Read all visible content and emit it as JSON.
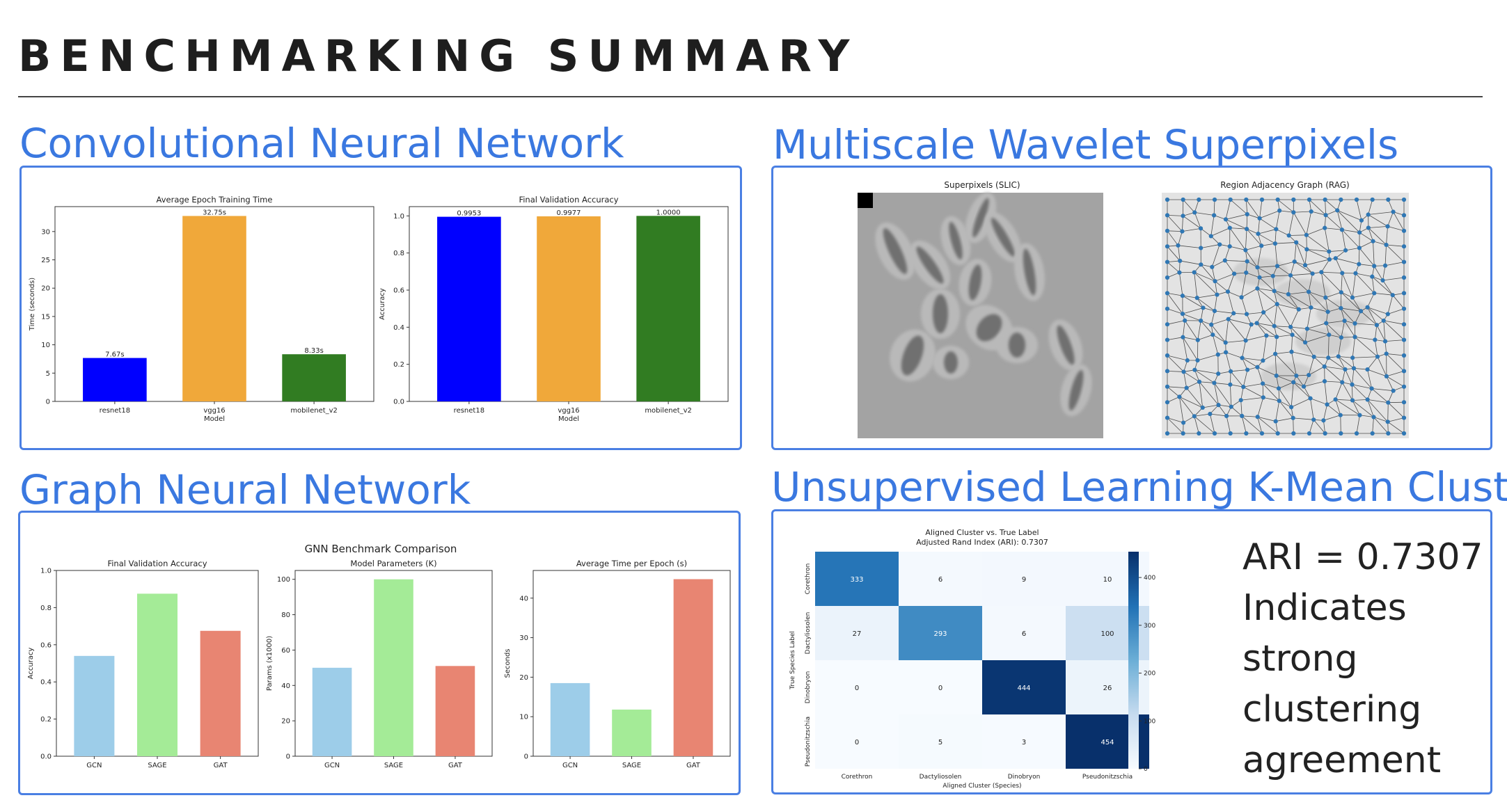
{
  "page": {
    "title": "BENCHMARKING SUMMARY"
  },
  "sections": {
    "cnn": "Convolutional Neural Network",
    "wavelet": "Multiscale Wavelet Superpixels",
    "gnn": "Graph Neural Network",
    "kmeans": "Unsupervised Learning K-Mean Clusters"
  },
  "ari_note": {
    "lines": [
      "ARI = 0.7307",
      "Indicates",
      "strong",
      "clustering",
      "agreement"
    ]
  },
  "images": {
    "superpixels_title": "Superpixels (SLIC)",
    "rag_title": "Region Adjacency Graph (RAG)"
  },
  "colors": {
    "accent": "#3a78e0",
    "cnn_bars": [
      "#0000ff",
      "#f0a83a",
      "#317c22"
    ],
    "gnn_bars": [
      "#9dcde9",
      "#a4eb97",
      "#e88572"
    ],
    "heatmap_low": "#f7fbff",
    "heatmap_high": "#08306b"
  },
  "chart_data": [
    {
      "type": "bar",
      "title": "Average Epoch Training Time",
      "xlabel": "Model",
      "ylabel": "Time (seconds)",
      "categories": [
        "resnet18",
        "vgg16",
        "mobilenet_v2"
      ],
      "values": [
        7.67,
        32.75,
        8.33
      ],
      "data_labels": [
        "7.67s",
        "32.75s",
        "8.33s"
      ],
      "ylim": [
        0,
        34.4
      ],
      "yticks": [
        0,
        5,
        10,
        15,
        20,
        25,
        30
      ]
    },
    {
      "type": "bar",
      "title": "Final Validation Accuracy",
      "xlabel": "Model",
      "ylabel": "Accuracy",
      "categories": [
        "resnet18",
        "vgg16",
        "mobilenet_v2"
      ],
      "values": [
        0.9953,
        0.9977,
        1.0
      ],
      "data_labels": [
        "0.9953",
        "0.9977",
        "1.0000"
      ],
      "ylim": [
        0,
        1.05
      ],
      "yticks": [
        0.0,
        0.2,
        0.4,
        0.6,
        0.8,
        1.0
      ]
    },
    {
      "type": "bar",
      "suptitle": "GNN Benchmark Comparison",
      "title": "Final Validation Accuracy",
      "xlabel": "",
      "ylabel": "Accuracy",
      "categories": [
        "GCN",
        "SAGE",
        "GAT"
      ],
      "values": [
        0.54,
        0.875,
        0.675
      ],
      "ylim": [
        0,
        1.0
      ],
      "yticks": [
        0.0,
        0.2,
        0.4,
        0.6,
        0.8,
        1.0
      ]
    },
    {
      "type": "bar",
      "title": "Model Parameters (K)",
      "xlabel": "",
      "ylabel": "Params (x1000)",
      "categories": [
        "GCN",
        "SAGE",
        "GAT"
      ],
      "values": [
        50,
        100,
        51
      ],
      "ylim": [
        0,
        105
      ],
      "yticks": [
        0,
        20,
        40,
        60,
        80,
        100
      ]
    },
    {
      "type": "bar",
      "title": "Average Time per Epoch (s)",
      "xlabel": "",
      "ylabel": "Seconds",
      "categories": [
        "GCN",
        "SAGE",
        "GAT"
      ],
      "values": [
        18.5,
        11.8,
        44.8
      ],
      "ylim": [
        0,
        47
      ],
      "yticks": [
        0,
        10,
        20,
        30,
        40
      ]
    },
    {
      "type": "heatmap",
      "title": "Aligned Cluster vs. True Label",
      "subtitle": "Adjusted Rand Index (ARI): 0.7307",
      "xlabel": "Aligned Cluster (Species)",
      "ylabel": "True Species Label",
      "x": [
        "Corethron",
        "Dactyliosolen",
        "Dinobryon",
        "Pseudonitzschia"
      ],
      "y": [
        "Corethron",
        "Dactyliosolen",
        "Dinobryon",
        "Pseudonitzschia"
      ],
      "values": [
        [
          333,
          6,
          9,
          10
        ],
        [
          27,
          293,
          6,
          100
        ],
        [
          0,
          0,
          444,
          26
        ],
        [
          0,
          5,
          3,
          454
        ]
      ],
      "colorbar_range": [
        0,
        454
      ],
      "colorbar_ticks": [
        0,
        100,
        200,
        300,
        400
      ]
    }
  ]
}
